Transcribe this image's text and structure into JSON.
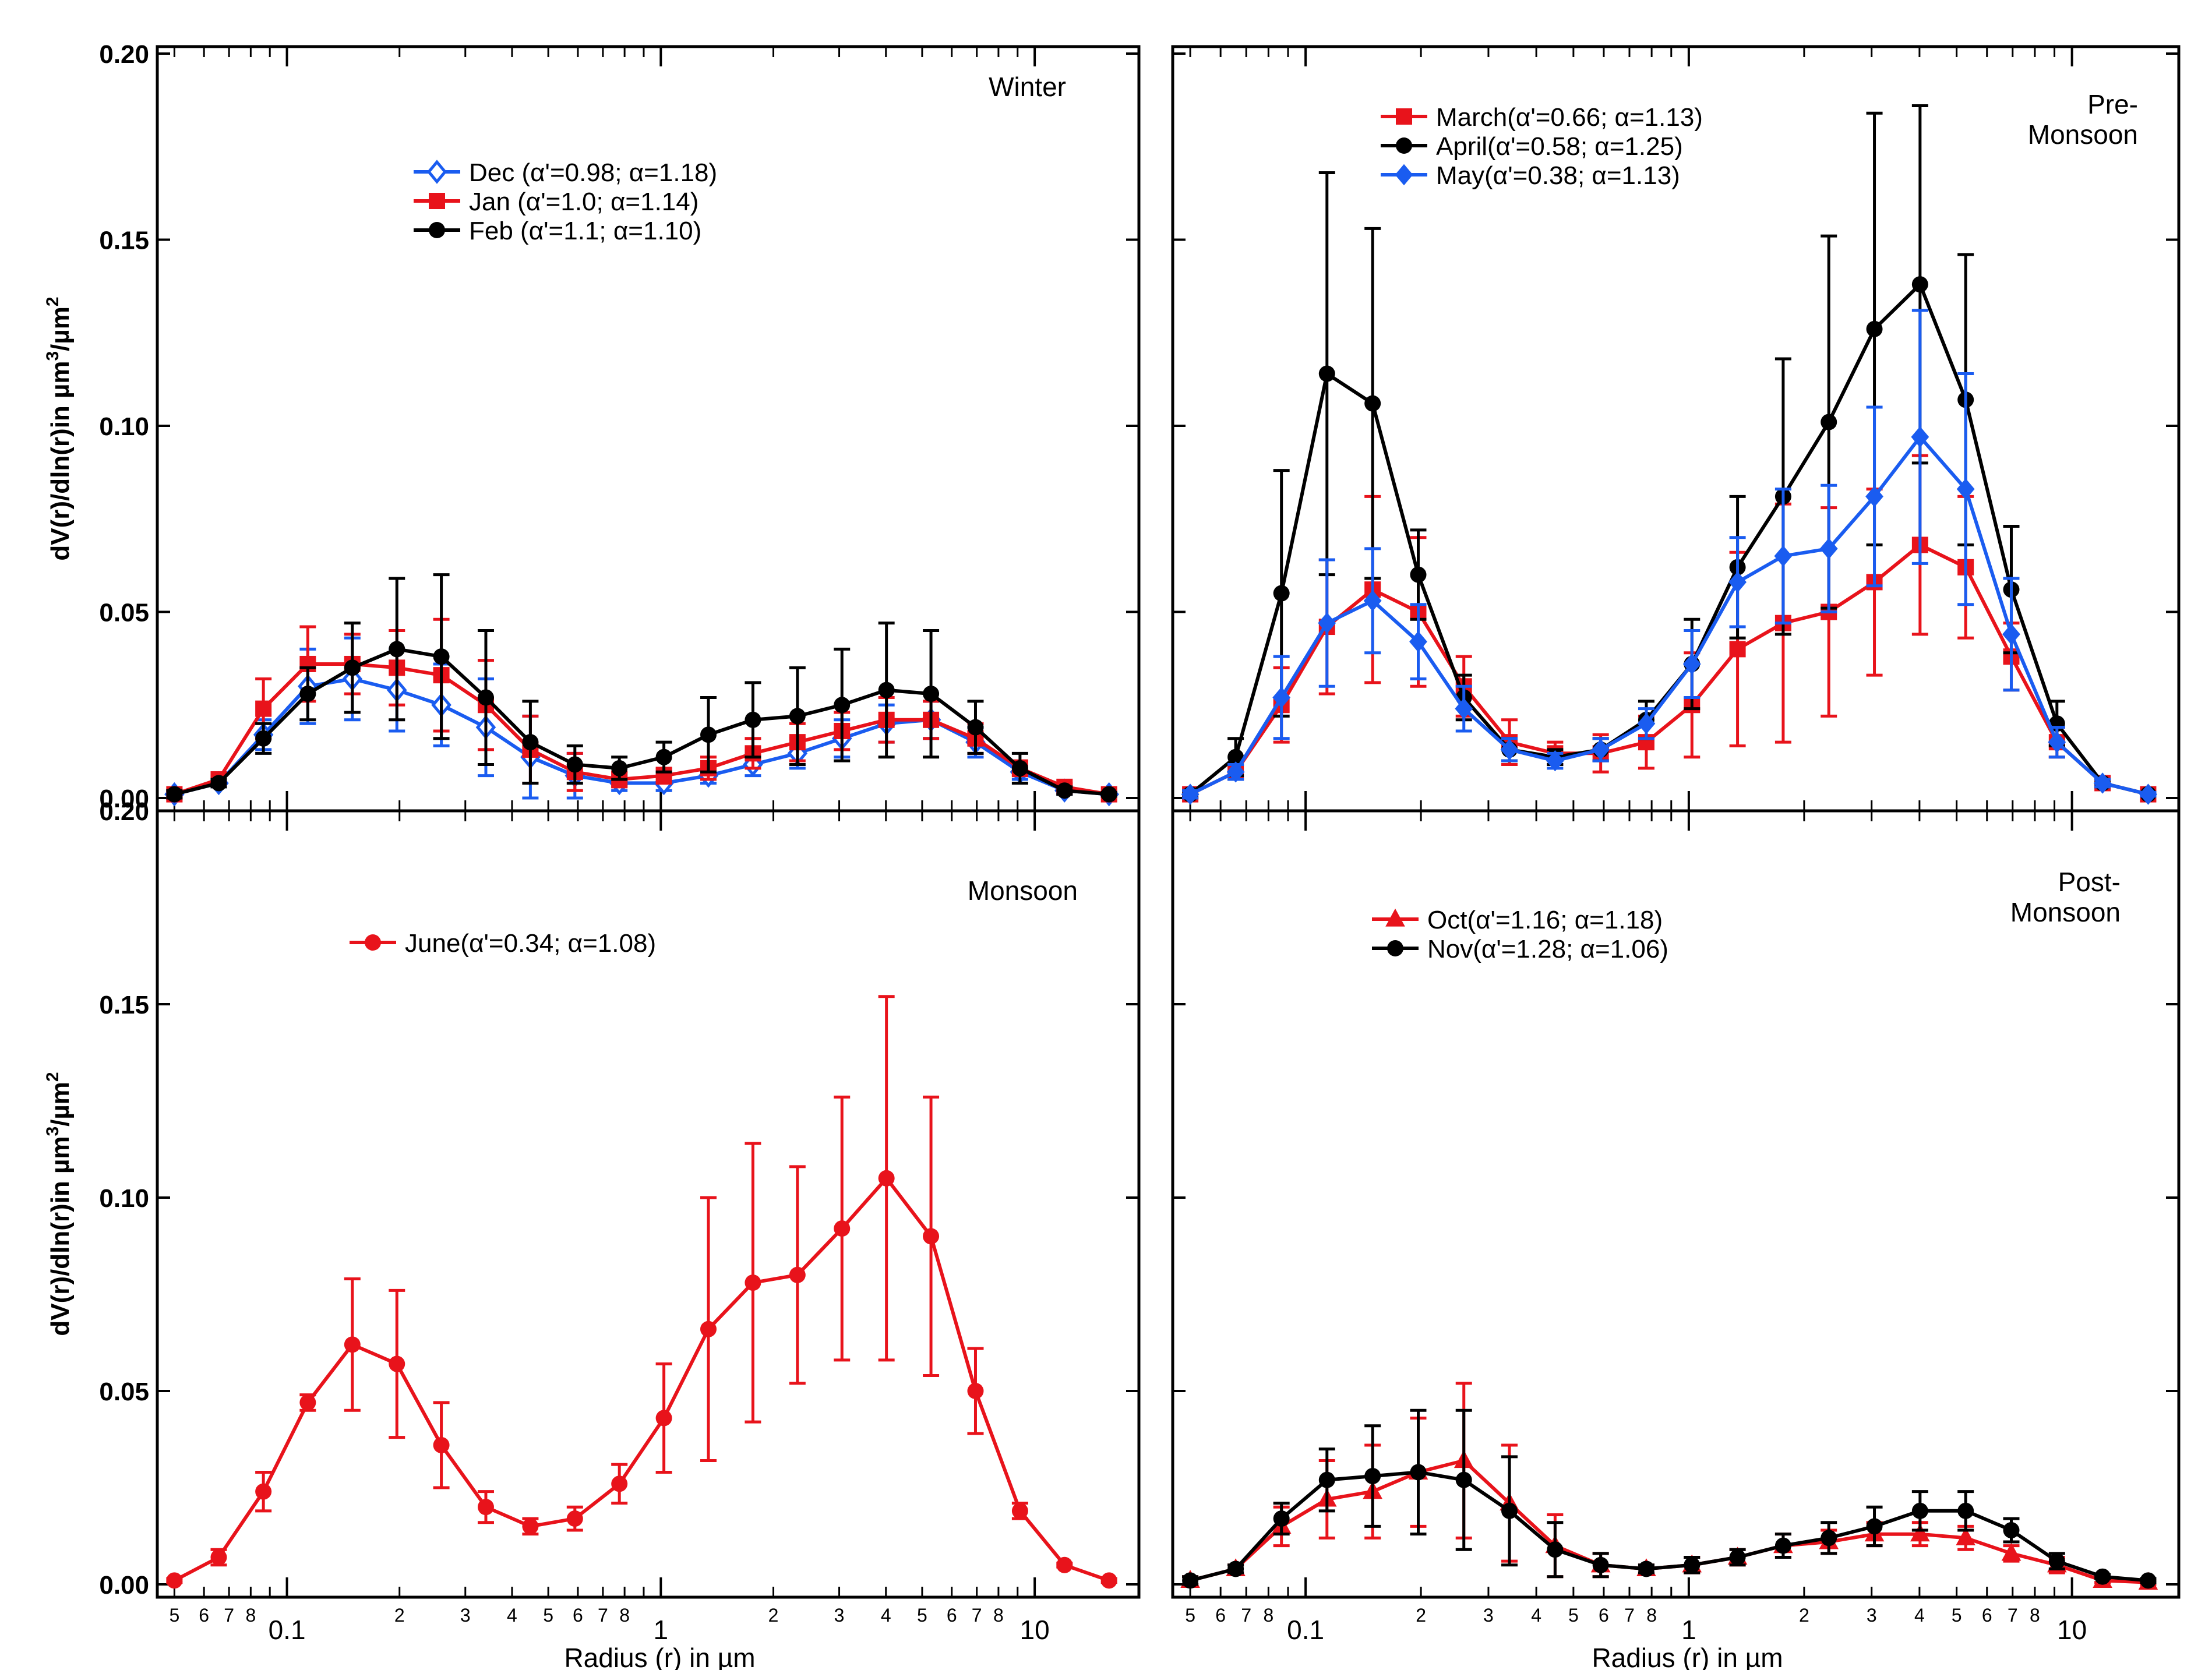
{
  "figure": {
    "xlabel": "Radius (r) in µm",
    "ylabel": "dV(r)/dln(r)in µm³/µm²",
    "ylabel_main": "dV(r)/dln(r)in µm",
    "ylabel_sup1": "3",
    "ylabel_mid": "/µm",
    "ylabel_sup2": "2",
    "ytick_labels": [
      "0.00",
      "0.05",
      "0.10",
      "0.15",
      "0.20"
    ],
    "xtick_major_labels": [
      "0.1",
      "1",
      "10"
    ],
    "xtick_minor_labels": [
      "5",
      "6",
      "7",
      "8",
      "2",
      "3",
      "4",
      "5",
      "6",
      "7",
      "8",
      "2",
      "3",
      "4",
      "5",
      "6",
      "7",
      "8"
    ],
    "colors": {
      "red": "#e8131b",
      "black": "#000000",
      "blue": "#1a5cf0"
    }
  },
  "chart_data": [
    {
      "type": "line",
      "title": "Winter",
      "title_lines": [
        "Winter"
      ],
      "xscale": "log",
      "xlim": [
        0.045,
        19
      ],
      "ylim": [
        0,
        0.2
      ],
      "legend_position": "top-center",
      "x": [
        0.05,
        0.0657,
        0.0865,
        0.1137,
        0.1496,
        0.1968,
        0.2588,
        0.3404,
        0.4478,
        0.589,
        0.7747,
        1.0191,
        1.3405,
        1.7633,
        2.3195,
        3.0511,
        4.0135,
        5.2794,
        6.9446,
        9.1351,
        12.0166,
        15.8068
      ],
      "series": [
        {
          "name": "Dec (α'=0.98; α=1.18)",
          "color": "#1a5cf0",
          "marker": "diamond-open",
          "values": [
            0.001,
            0.004,
            0.017,
            0.03,
            0.032,
            0.029,
            0.025,
            0.019,
            0.011,
            0.006,
            0.004,
            0.004,
            0.006,
            0.009,
            0.012,
            0.016,
            0.02,
            0.021,
            0.015,
            0.007,
            0.002,
            0.001
          ],
          "errors": [
            0.001,
            0.001,
            0.004,
            0.01,
            0.011,
            0.011,
            0.011,
            0.013,
            0.011,
            0.006,
            0.002,
            0.002,
            0.002,
            0.003,
            0.004,
            0.005,
            0.005,
            0.005,
            0.004,
            0.002,
            0.001,
            0.0005
          ]
        },
        {
          "name": "Jan (α'=1.0; α=1.14)",
          "color": "#e8131b",
          "marker": "square",
          "values": [
            0.001,
            0.005,
            0.024,
            0.036,
            0.036,
            0.035,
            0.033,
            0.025,
            0.013,
            0.007,
            0.005,
            0.006,
            0.008,
            0.012,
            0.015,
            0.018,
            0.021,
            0.021,
            0.016,
            0.008,
            0.003,
            0.001
          ],
          "errors": [
            0.001,
            0.001,
            0.008,
            0.01,
            0.008,
            0.01,
            0.015,
            0.012,
            0.009,
            0.005,
            0.002,
            0.002,
            0.003,
            0.004,
            0.005,
            0.005,
            0.006,
            0.005,
            0.004,
            0.002,
            0.001,
            0.0005
          ]
        },
        {
          "name": "Feb (α'=1.1; α=1.10)",
          "color": "#000000",
          "marker": "circle",
          "values": [
            0.001,
            0.004,
            0.016,
            0.028,
            0.035,
            0.04,
            0.038,
            0.027,
            0.015,
            0.009,
            0.008,
            0.011,
            0.017,
            0.021,
            0.022,
            0.025,
            0.029,
            0.028,
            0.019,
            0.008,
            0.002,
            0.001
          ],
          "errors": [
            0.001,
            0.001,
            0.004,
            0.007,
            0.012,
            0.019,
            0.022,
            0.018,
            0.011,
            0.005,
            0.003,
            0.004,
            0.01,
            0.01,
            0.013,
            0.015,
            0.018,
            0.017,
            0.007,
            0.004,
            0.001,
            0.0005
          ]
        }
      ]
    },
    {
      "type": "line",
      "title": "Pre-Monsoon",
      "title_lines": [
        "Pre-",
        "Monsoon"
      ],
      "xscale": "log",
      "xlim": [
        0.045,
        19
      ],
      "ylim": [
        0,
        0.2
      ],
      "legend_position": "top-center",
      "x": [
        0.05,
        0.0657,
        0.0865,
        0.1137,
        0.1496,
        0.1968,
        0.2588,
        0.3404,
        0.4478,
        0.589,
        0.7747,
        1.0191,
        1.3405,
        1.7633,
        2.3195,
        3.0511,
        4.0135,
        5.2794,
        6.9446,
        9.1351,
        12.0166,
        15.8068
      ],
      "series": [
        {
          "name": "March(α'=0.66; α=1.13)",
          "color": "#e8131b",
          "marker": "square",
          "values": [
            0.001,
            0.007,
            0.025,
            0.046,
            0.056,
            0.05,
            0.03,
            0.015,
            0.012,
            0.012,
            0.015,
            0.025,
            0.04,
            0.047,
            0.05,
            0.058,
            0.068,
            0.062,
            0.038,
            0.015,
            0.004,
            0.001
          ],
          "errors": [
            0.001,
            0.002,
            0.01,
            0.018,
            0.025,
            0.02,
            0.008,
            0.006,
            0.003,
            0.005,
            0.007,
            0.014,
            0.026,
            0.032,
            0.028,
            0.025,
            0.024,
            0.019,
            0.009,
            0.004,
            0.001,
            0.0005
          ]
        },
        {
          "name": "April(α'=0.58; α=1.25)",
          "color": "#000000",
          "marker": "circle",
          "values": [
            0.001,
            0.011,
            0.055,
            0.114,
            0.106,
            0.06,
            0.027,
            0.013,
            0.011,
            0.013,
            0.021,
            0.036,
            0.062,
            0.081,
            0.101,
            0.126,
            0.138,
            0.107,
            0.056,
            0.02,
            0.004,
            0.001
          ],
          "errors": [
            0.001,
            0.005,
            0.033,
            0.054,
            0.047,
            0.012,
            0.006,
            0.003,
            0.002,
            0.003,
            0.005,
            0.012,
            0.019,
            0.037,
            0.05,
            0.058,
            0.048,
            0.039,
            0.017,
            0.006,
            0.001,
            0.0005
          ]
        },
        {
          "name": "May(α'=0.38; α=1.13)",
          "color": "#1a5cf0",
          "marker": "diamond",
          "values": [
            0.001,
            0.007,
            0.027,
            0.047,
            0.053,
            0.042,
            0.024,
            0.013,
            0.01,
            0.013,
            0.02,
            0.036,
            0.058,
            0.065,
            0.067,
            0.081,
            0.097,
            0.083,
            0.044,
            0.015,
            0.004,
            0.001
          ],
          "errors": [
            0.001,
            0.002,
            0.011,
            0.017,
            0.014,
            0.01,
            0.006,
            0.003,
            0.002,
            0.003,
            0.004,
            0.009,
            0.012,
            0.018,
            0.017,
            0.024,
            0.034,
            0.031,
            0.015,
            0.004,
            0.001,
            0.0005
          ]
        }
      ]
    },
    {
      "type": "line",
      "title": "Monsoon",
      "title_lines": [
        "Monsoon"
      ],
      "xscale": "log",
      "xlim": [
        0.045,
        19
      ],
      "ylim": [
        0,
        0.2
      ],
      "legend_position": "top-center",
      "x": [
        0.05,
        0.0657,
        0.0865,
        0.1137,
        0.1496,
        0.1968,
        0.2588,
        0.3404,
        0.4478,
        0.589,
        0.7747,
        1.0191,
        1.3405,
        1.7633,
        2.3195,
        3.0511,
        4.0135,
        5.2794,
        6.9446,
        9.1351,
        12.0166,
        15.8068
      ],
      "series": [
        {
          "name": "June(α'=0.34; α=1.08)",
          "color": "#e8131b",
          "marker": "circle",
          "values": [
            0.001,
            0.007,
            0.024,
            0.047,
            0.062,
            0.057,
            0.036,
            0.02,
            0.015,
            0.017,
            0.026,
            0.043,
            0.066,
            0.078,
            0.08,
            0.092,
            0.105,
            0.09,
            0.05,
            0.019,
            0.005,
            0.001
          ],
          "errors": [
            0.0005,
            0.002,
            0.005,
            0.002,
            0.017,
            0.019,
            0.011,
            0.004,
            0.002,
            0.003,
            0.005,
            0.014,
            0.034,
            0.036,
            0.028,
            0.034,
            0.047,
            0.036,
            0.011,
            0.002,
            0.0005,
            0.0005
          ]
        }
      ]
    },
    {
      "type": "line",
      "title": "Post-Monsoon",
      "title_lines": [
        "Post-",
        "Monsoon"
      ],
      "xscale": "log",
      "xlim": [
        0.045,
        19
      ],
      "ylim": [
        0,
        0.2
      ],
      "legend_position": "top-center",
      "x": [
        0.05,
        0.0657,
        0.0865,
        0.1137,
        0.1496,
        0.1968,
        0.2588,
        0.3404,
        0.4478,
        0.589,
        0.7747,
        1.0191,
        1.3405,
        1.7633,
        2.3195,
        3.0511,
        4.0135,
        5.2794,
        6.9446,
        9.1351,
        12.0166,
        15.8068
      ],
      "series": [
        {
          "name": "Oct(α'=1.16; α=1.18)",
          "color": "#e8131b",
          "marker": "triangle",
          "values": [
            0.001,
            0.004,
            0.015,
            0.022,
            0.024,
            0.029,
            0.032,
            0.021,
            0.01,
            0.005,
            0.004,
            0.005,
            0.007,
            0.01,
            0.011,
            0.013,
            0.013,
            0.012,
            0.008,
            0.005,
            0.001,
            0.0005
          ],
          "errors": [
            0.001,
            0.001,
            0.005,
            0.01,
            0.012,
            0.014,
            0.02,
            0.015,
            0.008,
            0.003,
            0.001,
            0.002,
            0.002,
            0.003,
            0.003,
            0.003,
            0.003,
            0.003,
            0.002,
            0.002,
            0.0005,
            0.0005
          ]
        },
        {
          "name": "Nov(α'=1.28; α=1.06)",
          "color": "#000000",
          "marker": "circle",
          "values": [
            0.001,
            0.004,
            0.017,
            0.027,
            0.028,
            0.029,
            0.027,
            0.019,
            0.009,
            0.005,
            0.004,
            0.005,
            0.007,
            0.01,
            0.012,
            0.015,
            0.019,
            0.019,
            0.014,
            0.006,
            0.002,
            0.001
          ],
          "errors": [
            0.001,
            0.001,
            0.004,
            0.008,
            0.013,
            0.016,
            0.018,
            0.014,
            0.007,
            0.003,
            0.001,
            0.002,
            0.002,
            0.003,
            0.004,
            0.005,
            0.005,
            0.005,
            0.003,
            0.002,
            0.0005,
            0.0005
          ]
        }
      ]
    }
  ]
}
